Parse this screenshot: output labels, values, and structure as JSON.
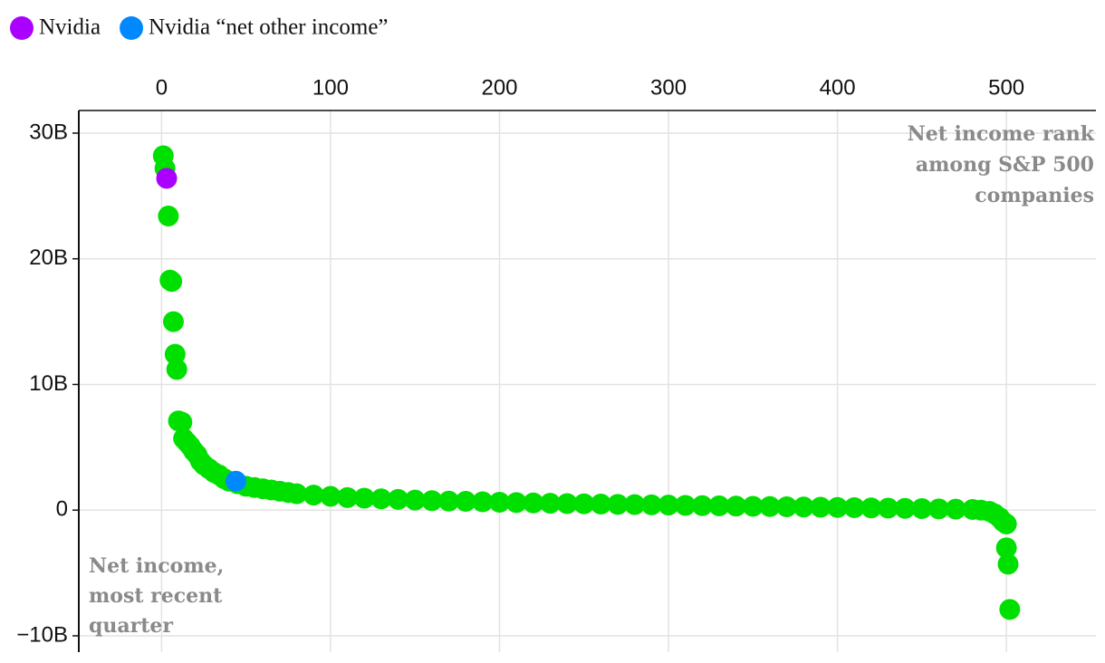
{
  "chart_data": {
    "type": "scatter",
    "x_label": [
      "Net income rank",
      "among S&P 500",
      "companies"
    ],
    "y_label": [
      "Net income,",
      "most recent",
      "quarter"
    ],
    "xlim": [
      -49,
      553
    ],
    "xticks": [
      0,
      100,
      200,
      300,
      400,
      500
    ],
    "ylim": [
      -11.3,
      31.8
    ],
    "yticks": [
      {
        "value": -10,
        "label": "−10B"
      },
      0,
      {
        "value": 10,
        "label": "10B"
      },
      {
        "value": 20,
        "label": "20B"
      },
      {
        "value": 30,
        "label": "30B"
      }
    ],
    "grid": true,
    "legend": "top-left",
    "series": [
      {
        "color": "#00e000",
        "x": [
          1,
          2,
          4,
          5,
          6,
          7,
          8,
          9,
          10,
          12,
          13,
          15,
          17,
          19,
          21,
          23,
          25,
          28,
          31,
          34,
          37,
          40,
          45,
          50,
          55,
          60,
          65,
          70,
          75,
          80,
          90,
          100,
          110,
          120,
          130,
          140,
          150,
          160,
          170,
          180,
          190,
          200,
          210,
          220,
          230,
          240,
          250,
          260,
          270,
          280,
          290,
          300,
          310,
          320,
          330,
          340,
          350,
          360,
          370,
          380,
          390,
          400,
          410,
          420,
          430,
          440,
          450,
          460,
          470,
          480,
          485,
          490,
          493,
          496,
          498,
          500,
          500,
          501,
          502
        ],
        "values": [
          28.2,
          27.2,
          23.4,
          18.3,
          18.2,
          15.0,
          12.4,
          11.2,
          7.1,
          7.0,
          5.7,
          5.4,
          5.1,
          4.7,
          4.4,
          3.9,
          3.6,
          3.3,
          3.0,
          2.8,
          2.5,
          2.3,
          2.1,
          1.9,
          1.8,
          1.7,
          1.6,
          1.5,
          1.4,
          1.3,
          1.2,
          1.1,
          1.0,
          0.95,
          0.9,
          0.85,
          0.8,
          0.75,
          0.72,
          0.7,
          0.66,
          0.63,
          0.6,
          0.57,
          0.55,
          0.52,
          0.5,
          0.48,
          0.46,
          0.44,
          0.42,
          0.4,
          0.38,
          0.36,
          0.34,
          0.32,
          0.3,
          0.29,
          0.27,
          0.25,
          0.23,
          0.21,
          0.2,
          0.18,
          0.16,
          0.14,
          0.12,
          0.1,
          0.08,
          0.05,
          0.0,
          -0.1,
          -0.3,
          -0.6,
          -0.9,
          -1.1,
          -3.0,
          -4.3,
          -7.9
        ]
      },
      {
        "name": "Nvidia",
        "color": "#aa00ff",
        "x": [
          3
        ],
        "values": [
          26.4
        ]
      },
      {
        "name": "Nvidia “net other income”",
        "color": "#0088ff",
        "x": [
          44
        ],
        "values": [
          2.3
        ]
      }
    ]
  }
}
